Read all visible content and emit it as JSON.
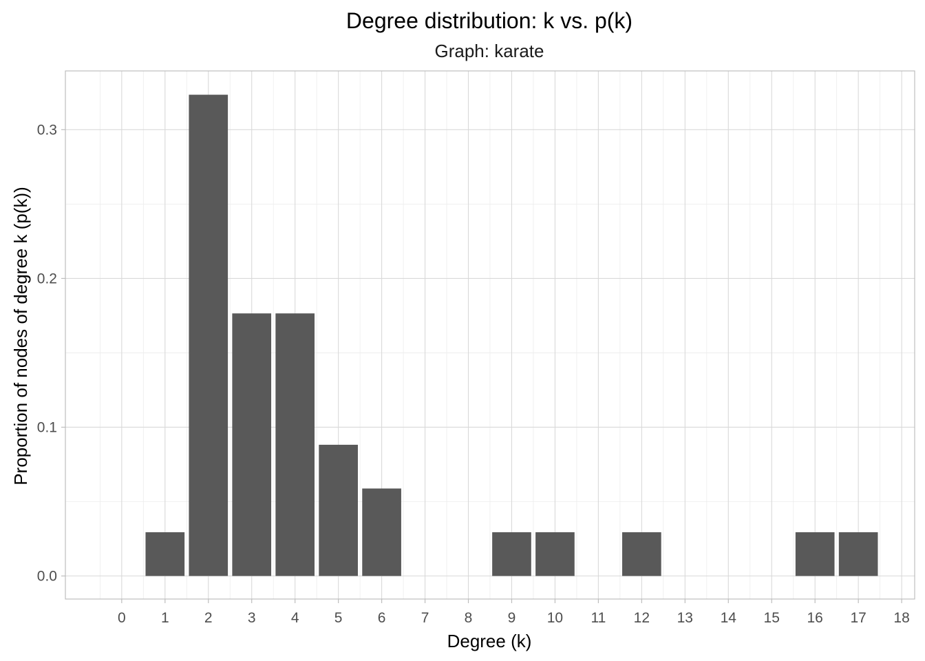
{
  "chart_data": {
    "type": "bar",
    "title": "Degree distribution: k vs. p(k)",
    "subtitle": "Graph: karate",
    "xlabel": "Degree (k)",
    "ylabel": "Proportion of nodes of degree k (p(k))",
    "x": [
      1,
      2,
      3,
      4,
      5,
      6,
      9,
      10,
      12,
      16,
      17
    ],
    "values": [
      0.0294,
      0.3235,
      0.1765,
      0.1765,
      0.0882,
      0.0588,
      0.0294,
      0.0294,
      0.0294,
      0.0294,
      0.0294
    ],
    "x_ticks": [
      "0",
      "1",
      "2",
      "3",
      "4",
      "5",
      "6",
      "7",
      "8",
      "9",
      "10",
      "11",
      "12",
      "13",
      "14",
      "15",
      "16",
      "17",
      "18"
    ],
    "y_ticks": [
      "0.0",
      "0.1",
      "0.2",
      "0.3"
    ],
    "xlim": [
      -1.3,
      18.3
    ],
    "ylim": [
      -0.0155,
      0.3395
    ],
    "bar_color": "#595959",
    "grid": true,
    "legend": "none"
  }
}
